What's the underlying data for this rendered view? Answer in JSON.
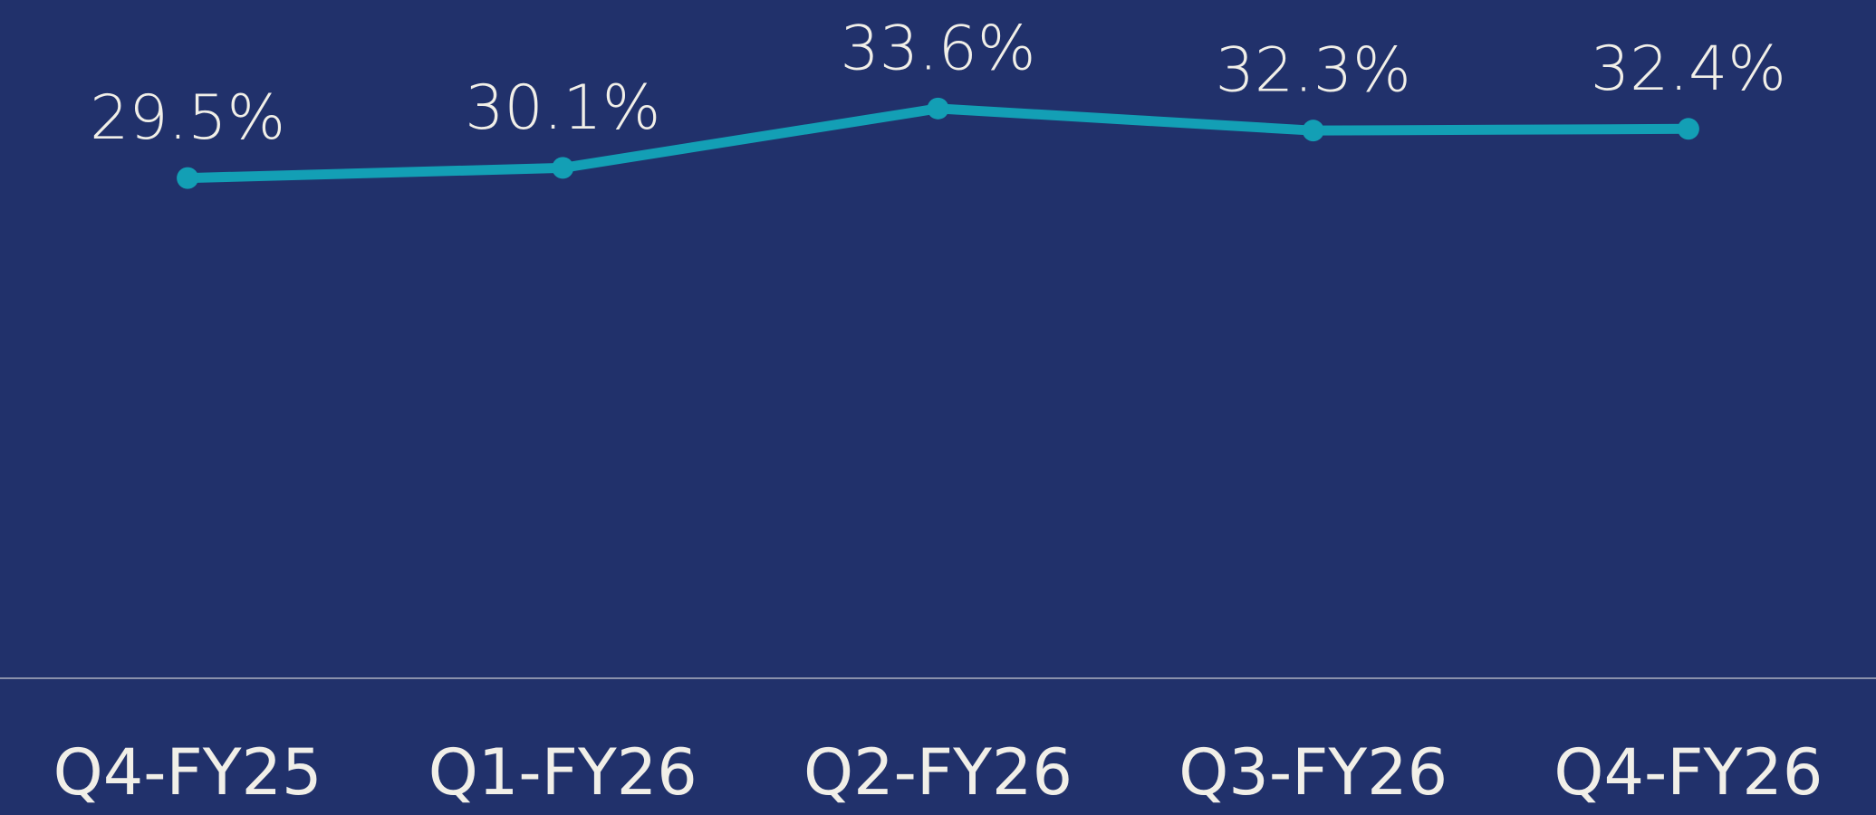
{
  "chart_data": {
    "type": "line",
    "categories": [
      "Q4-FY25",
      "Q1-FY26",
      "Q2-FY26",
      "Q3-FY26",
      "Q4-FY26"
    ],
    "values": [
      29.5,
      30.1,
      33.6,
      32.3,
      32.4
    ],
    "value_labels": [
      "29.5%",
      "30.1%",
      "33.6%",
      "32.3%",
      "32.4%"
    ],
    "color": "#139fb5",
    "ylim": [
      0,
      40
    ]
  }
}
